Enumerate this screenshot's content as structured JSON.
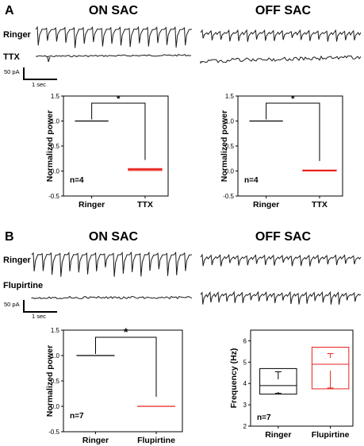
{
  "panel_a": {
    "letter": "A",
    "titles": {
      "left": "ON SAC",
      "right": "OFF SAC"
    },
    "trace_labels": {
      "top": "Ringer",
      "bottom": "TTX"
    },
    "scale_bar": {
      "amplitude": "50 pA",
      "time": "1 sec"
    }
  },
  "panel_b": {
    "letter": "B",
    "titles": {
      "left": "ON SAC",
      "right": "OFF SAC"
    },
    "trace_labels": {
      "top": "Ringer",
      "bottom": "Flupirtine"
    },
    "scale_bar": {
      "amplitude": "50 pA",
      "time": "1 sec"
    }
  },
  "colors": {
    "control": "#000000",
    "drug": "#e8231f",
    "trace": "#1a1a1a"
  },
  "chart_data": [
    {
      "id": "a-on",
      "type": "box",
      "ylabel": "Normalized power",
      "ylim": [
        -0.5,
        1.5
      ],
      "yticks": [
        "1.5",
        "1.0",
        "0.5",
        "0.0",
        "-0.5"
      ],
      "categories": [
        "Ringer",
        "TTX"
      ],
      "values": [
        1.0,
        0.03
      ],
      "box_low": [
        1.0,
        0.01
      ],
      "box_high": [
        1.0,
        0.05
      ],
      "n_label": "n=4",
      "significance": "*"
    },
    {
      "id": "a-off",
      "type": "box",
      "ylabel": "Normalized power",
      "ylim": [
        -0.5,
        1.5
      ],
      "yticks": [
        "1.5",
        "1.0",
        "0.5",
        "0.0",
        "-0.5"
      ],
      "categories": [
        "Ringer",
        "TTX"
      ],
      "values": [
        1.0,
        0.01
      ],
      "box_low": [
        1.0,
        0.0
      ],
      "box_high": [
        1.0,
        0.02
      ],
      "n_label": "n=4",
      "significance": "*"
    },
    {
      "id": "b-on",
      "type": "box",
      "ylabel": "Normalized power",
      "ylim": [
        -0.5,
        1.5
      ],
      "yticks": [
        "1.5",
        "1.0",
        "0.5",
        "0.0",
        "-0.5"
      ],
      "categories": [
        "Ringer",
        "Flupirtine"
      ],
      "values": [
        1.0,
        0.0
      ],
      "box_low": [
        1.0,
        0.0
      ],
      "box_high": [
        1.0,
        0.0
      ],
      "n_label": "n=7",
      "significance": "*"
    },
    {
      "id": "b-off",
      "type": "box",
      "ylabel": "Frequency (Hz)",
      "ylim": [
        2,
        6.5
      ],
      "yticks": [
        "6",
        "5",
        "4",
        "3",
        "2"
      ],
      "categories": [
        "Ringer",
        "Flupirtine"
      ],
      "values": [
        3.9,
        4.9
      ],
      "box_low": [
        3.5,
        3.75
      ],
      "box_high": [
        4.7,
        5.7
      ],
      "whisker_low": [
        3.5,
        3.75
      ],
      "whisker_high": [
        4.55,
        5.4
      ],
      "n_label": "n=7",
      "significance": ""
    }
  ]
}
